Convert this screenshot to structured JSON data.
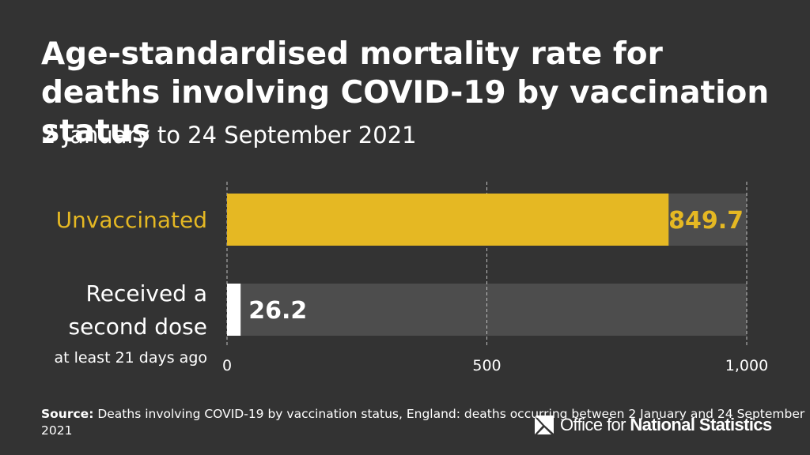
{
  "header": {
    "title": "Age-standardised mortality rate for deaths involving COVID-19 by vaccination status",
    "subtitle": "2 January to 24 September 2021"
  },
  "chart_data": {
    "type": "bar",
    "orientation": "horizontal",
    "categories": [
      {
        "lines": [
          "Unvaccinated"
        ],
        "note": ""
      },
      {
        "lines": [
          "Received a",
          "second dose"
        ],
        "note": "at least 21 days ago"
      }
    ],
    "values": [
      849.7,
      26.2
    ],
    "value_labels": [
      "849.7",
      "26.2"
    ],
    "colors": [
      "#e5b823",
      "#ffffff"
    ],
    "label_colors": [
      "#e5b823",
      "#ffffff"
    ],
    "track_color": "#4d4d4d",
    "xlim": [
      0,
      1000
    ],
    "xticks": [
      0,
      500,
      1000
    ],
    "xtick_labels": [
      "0",
      "500",
      "1,000"
    ],
    "grid": true,
    "title": "Age-standardised mortality rate for deaths involving COVID-19 by vaccination status",
    "subtitle": "2 January to 24 September 2021"
  },
  "footer": {
    "source_label": "Source:",
    "source_text": "Deaths involving COVID-19 by vaccination status, England: deaths occurring between 2 January and 24 September 2021"
  },
  "logo": {
    "icon": "ons-logo-icon",
    "text_regular": "Office for",
    "text_bold": "National Statistics"
  }
}
